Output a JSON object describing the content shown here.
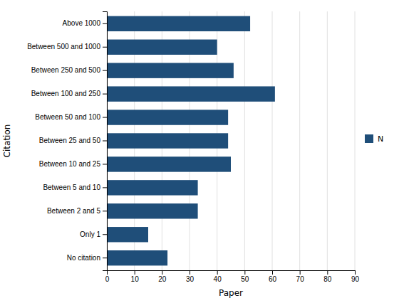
{
  "chart_data": {
    "type": "bar",
    "orientation": "horizontal",
    "categories": [
      "Above 1000",
      "Between 500 and 1000",
      "Between 250 and 500",
      "Between 100 and 250",
      "Between 50 and 100",
      "Between 25 and 50",
      "Between 10 and 25",
      "Between 5 and 10",
      "Between 2 and 5",
      "Only 1",
      "No citation"
    ],
    "series": [
      {
        "name": "N",
        "color": "#1F4E79",
        "values": [
          52,
          40,
          46,
          61,
          44,
          44,
          45,
          33,
          33,
          15,
          22
        ]
      }
    ],
    "xlabel": "Paper",
    "ylabel": "Citation",
    "xlim": [
      0,
      90
    ],
    "xticks": [
      0,
      10,
      20,
      30,
      40,
      50,
      60,
      70,
      80,
      90
    ],
    "grid": true,
    "legend": "right"
  }
}
